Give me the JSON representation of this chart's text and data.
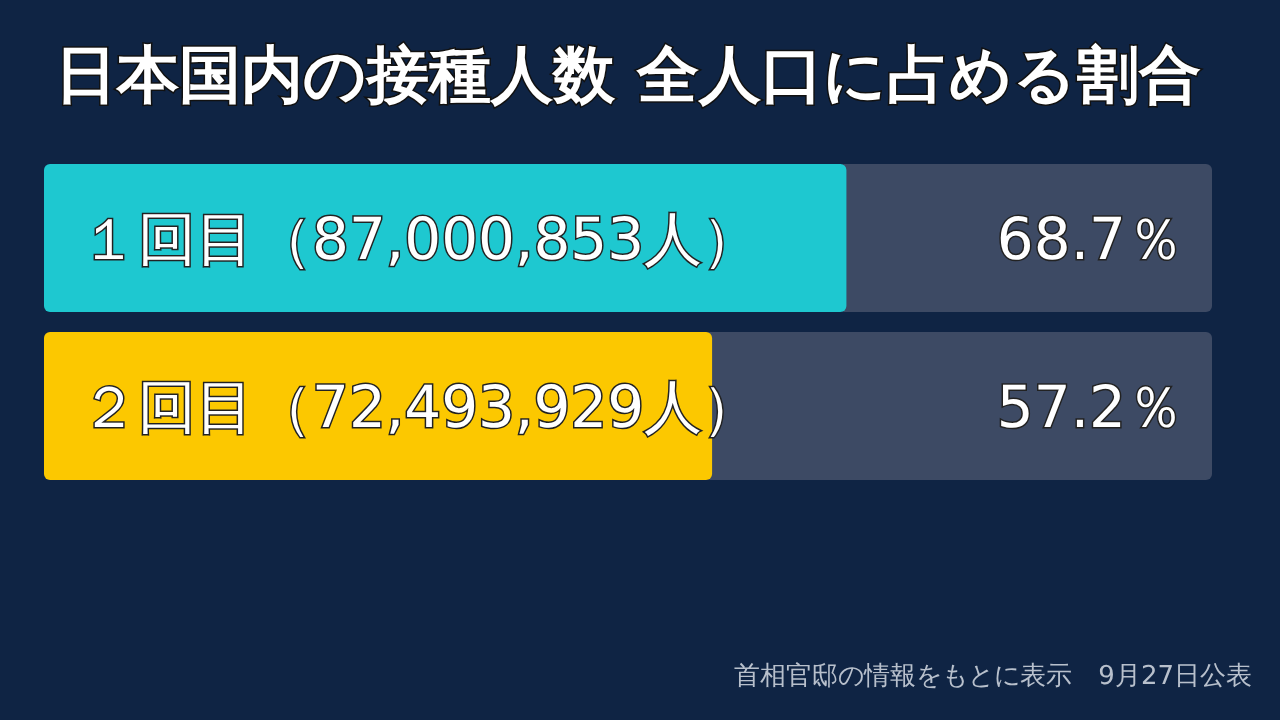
{
  "chart_data": {
    "type": "bar",
    "orientation": "horizontal",
    "title": "日本国内の接種人数 全人口に占める割合",
    "categories": [
      "１回目（87,000,853人）",
      "２回目（72,493,929人）"
    ],
    "values": [
      68.7,
      57.2
    ],
    "colors": [
      "#1ec8d0",
      "#fcc800"
    ],
    "value_labels": [
      "68.7％",
      "57.2％"
    ],
    "xlim": [
      0,
      100
    ],
    "annotations": [
      "首相官邸の情報をもとに表示　9月27日公表"
    ]
  }
}
